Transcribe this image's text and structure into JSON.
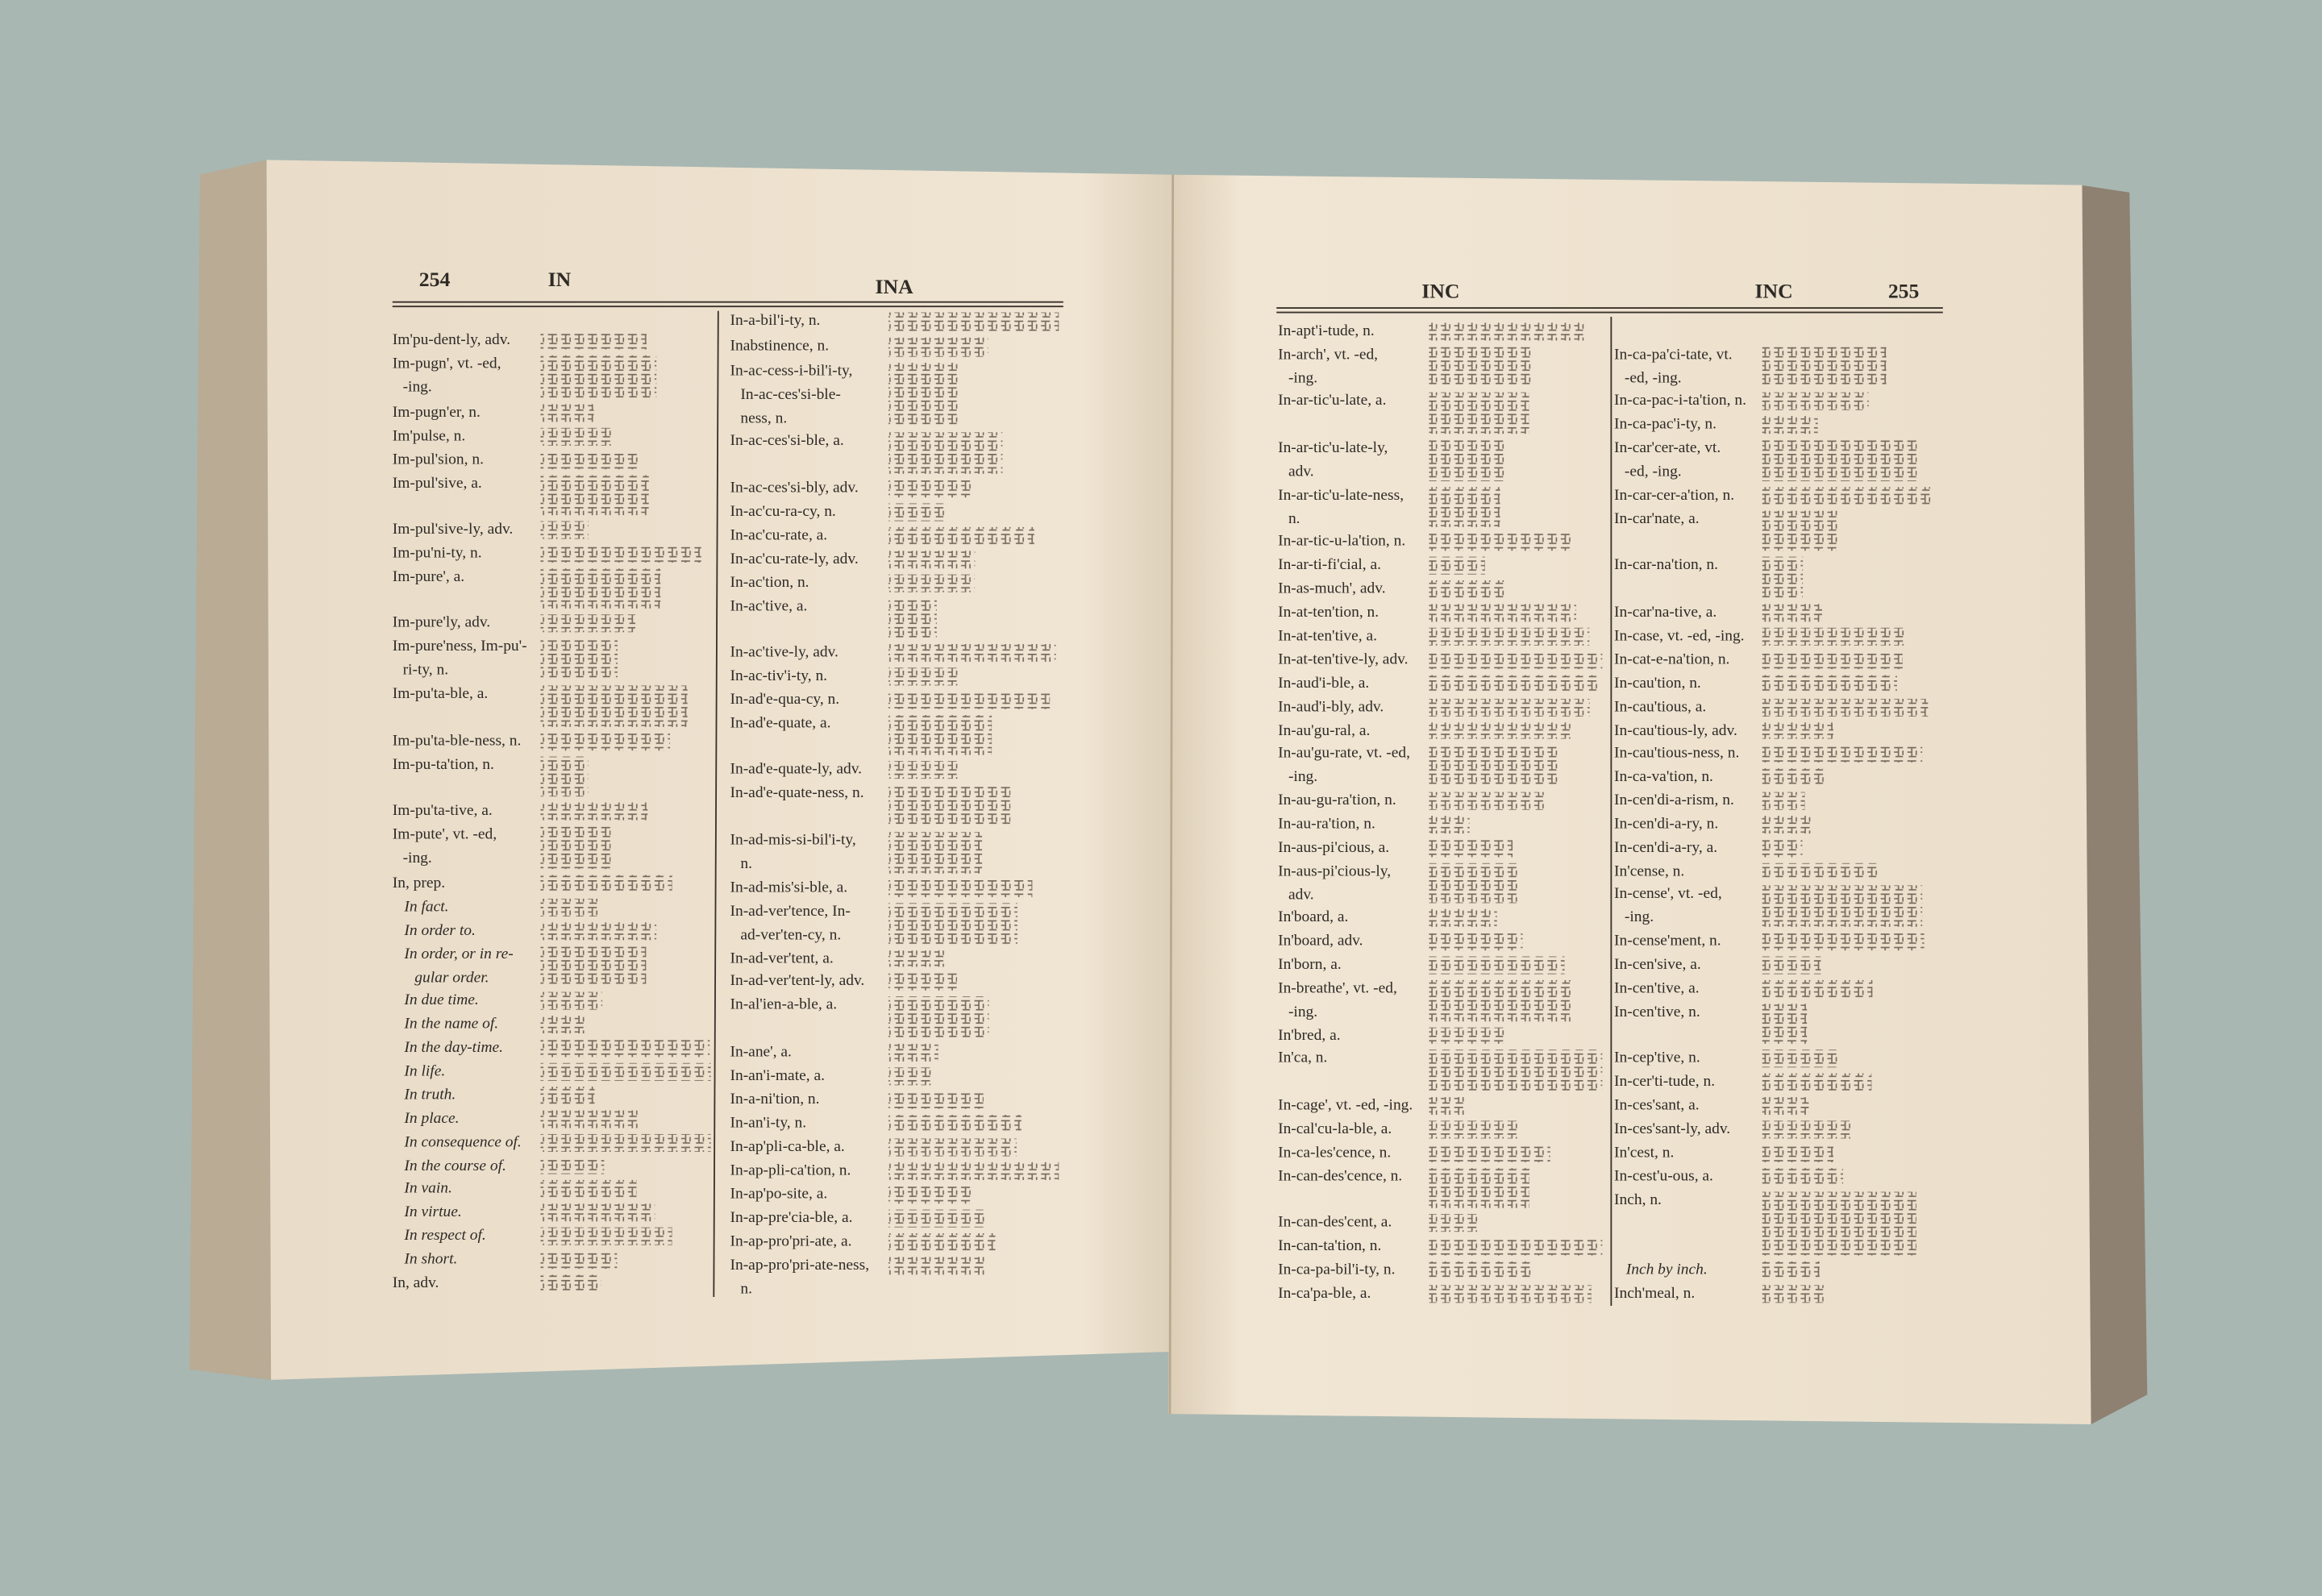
{
  "pages": [
    {
      "header": {
        "page_number": "254",
        "left_guide": "IN",
        "right_guide": "INA"
      },
      "columns": [
        [
          {
            "lines": [
              "Im'pu-dent-ly, adv."
            ]
          },
          {
            "lines": [
              "Im-pugn', vt. -ed,",
              "-ing."
            ]
          },
          {
            "lines": [
              "Im-pugn'er, n."
            ]
          },
          {
            "lines": [
              "Im'pulse, n."
            ]
          },
          {
            "lines": [
              "Im-pul'sion, n."
            ]
          },
          {
            "lines": [
              "Im-pul'sive, a."
            ]
          },
          {
            "lines": [
              "Im-pul'sive-ly, adv."
            ]
          },
          {
            "lines": [
              "Im-pu'ni-ty, n."
            ]
          },
          {
            "lines": [
              "Im-pure', a."
            ]
          },
          {
            "lines": [
              "Im-pure'ly, adv."
            ]
          },
          {
            "lines": [
              "Im-pure'ness, Im-pu'-",
              "ri-ty, n."
            ]
          },
          {
            "lines": [
              "Im-pu'ta-ble, a."
            ]
          },
          {
            "lines": [
              "Im-pu'ta-ble-ness, n."
            ]
          },
          {
            "lines": [
              "Im-pu-ta'tion, n."
            ]
          },
          {
            "lines": [
              "Im-pu'ta-tive, a."
            ]
          },
          {
            "lines": [
              "Im-pute', vt. -ed,",
              "-ing."
            ]
          },
          {
            "lines": [
              "In, prep."
            ]
          },
          {
            "lines": [
              "In fact."
            ]
          },
          {
            "lines": [
              "In order to."
            ]
          },
          {
            "lines": [
              "In order, or in re-",
              "gular order."
            ]
          },
          {
            "lines": [
              "In due time."
            ]
          },
          {
            "lines": [
              "In the name of."
            ]
          },
          {
            "lines": [
              "In the day-time."
            ]
          },
          {
            "lines": [
              "In life."
            ]
          },
          {
            "lines": [
              "In truth."
            ]
          },
          {
            "lines": [
              "In place."
            ]
          },
          {
            "lines": [
              "In consequence of."
            ]
          },
          {
            "lines": [
              "In the course of."
            ]
          },
          {
            "lines": [
              "In vain."
            ]
          },
          {
            "lines": [
              "In virtue."
            ]
          },
          {
            "lines": [
              "In respect of."
            ]
          },
          {
            "lines": [
              "In short."
            ]
          },
          {
            "lines": [
              "In, adv."
            ]
          }
        ],
        [
          {
            "lines": [
              "In-a-bil'i-ty, n."
            ]
          },
          {
            "lines": [
              "Inabstinence, n."
            ]
          },
          {
            "lines": [
              "In-ac-cess-i-bil'i-ty,",
              "In-ac-ces'si-ble-",
              "ness, n."
            ]
          },
          {
            "lines": [
              "In-ac-ces'si-ble, a."
            ]
          },
          {
            "lines": [
              "In-ac-ces'si-bly, adv."
            ]
          },
          {
            "lines": [
              "In-ac'cu-ra-cy, n."
            ]
          },
          {
            "lines": [
              "In-ac'cu-rate, a."
            ]
          },
          {
            "lines": [
              "In-ac'cu-rate-ly, adv."
            ]
          },
          {
            "lines": [
              "In-ac'tion, n."
            ]
          },
          {
            "lines": [
              "In-ac'tive, a."
            ]
          },
          {
            "lines": [
              "In-ac'tive-ly, adv."
            ]
          },
          {
            "lines": [
              "In-ac-tiv'i-ty, n."
            ]
          },
          {
            "lines": [
              "In-ad'e-qua-cy, n."
            ]
          },
          {
            "lines": [
              "In-ad'e-quate, a."
            ]
          },
          {
            "lines": [
              "In-ad'e-quate-ly, adv."
            ]
          },
          {
            "lines": [
              "In-ad'e-quate-ness, n."
            ]
          },
          {
            "lines": [
              "In-ad-mis-si-bil'i-ty,",
              "n."
            ]
          },
          {
            "lines": [
              "In-ad-mis'si-ble, a."
            ]
          },
          {
            "lines": [
              "In-ad-ver'tence, In-",
              "ad-ver'ten-cy, n."
            ]
          },
          {
            "lines": [
              "In-ad-ver'tent, a."
            ]
          },
          {
            "lines": [
              "In-ad-ver'tent-ly, adv."
            ]
          },
          {
            "lines": [
              "In-al'ien-a-ble, a."
            ]
          },
          {
            "lines": [
              "In-ane', a."
            ]
          },
          {
            "lines": [
              "In-an'i-mate, a."
            ]
          },
          {
            "lines": [
              "In-a-ni'tion, n."
            ]
          },
          {
            "lines": [
              "In-an'i-ty, n."
            ]
          },
          {
            "lines": [
              "In-ap'pli-ca-ble, a."
            ]
          },
          {
            "lines": [
              "In-ap-pli-ca'tion, n."
            ]
          },
          {
            "lines": [
              "In-ap'po-site, a."
            ]
          },
          {
            "lines": [
              "In-ap-pre'cia-ble, a."
            ]
          },
          {
            "lines": [
              "In-ap-pro'pri-ate, a."
            ]
          },
          {
            "lines": [
              "In-ap-pro'pri-ate-ness,",
              "n."
            ]
          }
        ]
      ]
    },
    {
      "header": {
        "left_guide": "INC",
        "right_guide": "INC",
        "page_number": "255"
      },
      "columns": [
        [
          {
            "lines": [
              "In-apt'i-tude, n."
            ]
          },
          {
            "lines": [
              "In-arch', vt. -ed,",
              "-ing."
            ]
          },
          {
            "lines": [
              "In-ar-tic'u-late, a."
            ]
          },
          {
            "lines": [
              "In-ar-tic'u-late-ly,",
              "adv."
            ]
          },
          {
            "lines": [
              "In-ar-tic'u-late-ness,",
              "n."
            ]
          },
          {
            "lines": [
              "In-ar-tic-u-la'tion, n."
            ]
          },
          {
            "lines": [
              "In-ar-ti-fi'cial, a."
            ]
          },
          {
            "lines": [
              "In-as-much', adv."
            ]
          },
          {
            "lines": [
              "In-at-ten'tion, n."
            ]
          },
          {
            "lines": [
              "In-at-ten'tive, a."
            ]
          },
          {
            "lines": [
              "In-at-ten'tive-ly, adv."
            ]
          },
          {
            "lines": [
              "In-aud'i-ble, a."
            ]
          },
          {
            "lines": [
              "In-aud'i-bly, adv."
            ]
          },
          {
            "lines": [
              "In-au'gu-ral, a."
            ]
          },
          {
            "lines": [
              "In-au'gu-rate, vt. -ed,",
              "-ing."
            ]
          },
          {
            "lines": [
              "In-au-gu-ra'tion, n."
            ]
          },
          {
            "lines": [
              "In-au-ra'tion, n."
            ]
          },
          {
            "lines": [
              "In-aus-pi'cious, a."
            ]
          },
          {
            "lines": [
              "In-aus-pi'cious-ly,",
              "adv."
            ]
          },
          {
            "lines": [
              "In'board, a."
            ]
          },
          {
            "lines": [
              "In'board, adv."
            ]
          },
          {
            "lines": [
              "In'born, a."
            ]
          },
          {
            "lines": [
              "In-breathe', vt. -ed,",
              "-ing."
            ]
          },
          {
            "lines": [
              "In'bred, a."
            ]
          },
          {
            "lines": [
              "In'ca, n."
            ]
          },
          {
            "lines": [
              "In-cage', vt. -ed, -ing."
            ]
          },
          {
            "lines": [
              "In-cal'cu-la-ble, a."
            ]
          },
          {
            "lines": [
              "In-ca-les'cence, n."
            ]
          },
          {
            "lines": [
              "In-can-des'cence, n."
            ]
          },
          {
            "lines": [
              "In-can-des'cent, a."
            ]
          },
          {
            "lines": [
              "In-can-ta'tion, n."
            ]
          },
          {
            "lines": [
              "In-ca-pa-bil'i-ty, n."
            ]
          },
          {
            "lines": [
              "In-ca'pa-ble, a."
            ]
          }
        ],
        [
          {
            "lines": [
              "In-ca-pa'ci-tate, vt.",
              "-ed, -ing."
            ]
          },
          {
            "lines": [
              "In-ca-pac-i-ta'tion, n."
            ]
          },
          {
            "lines": [
              "In-ca-pac'i-ty, n."
            ]
          },
          {
            "lines": [
              "In-car'cer-ate, vt.",
              "-ed, -ing."
            ]
          },
          {
            "lines": [
              "In-car-cer-a'tion, n."
            ]
          },
          {
            "lines": [
              "In-car'nate, a."
            ]
          },
          {
            "lines": [
              "In-car-na'tion, n."
            ]
          },
          {
            "lines": [
              "In-car'na-tive, a."
            ]
          },
          {
            "lines": [
              "In-case, vt. -ed, -ing."
            ]
          },
          {
            "lines": [
              "In-cat-e-na'tion, n."
            ]
          },
          {
            "lines": [
              "In-cau'tion, n."
            ]
          },
          {
            "lines": [
              "In-cau'tious, a."
            ]
          },
          {
            "lines": [
              "In-cau'tious-ly, adv."
            ]
          },
          {
            "lines": [
              "In-cau'tious-ness, n."
            ]
          },
          {
            "lines": [
              "In-ca-va'tion, n."
            ]
          },
          {
            "lines": [
              "In-cen'di-a-rism, n."
            ]
          },
          {
            "lines": [
              "In-cen'di-a-ry, n."
            ]
          },
          {
            "lines": [
              "In-cen'di-a-ry, a."
            ]
          },
          {
            "lines": [
              "In'cense, n."
            ]
          },
          {
            "lines": [
              "In-cense', vt. -ed,",
              "-ing."
            ]
          },
          {
            "lines": [
              "In-cense'ment, n."
            ]
          },
          {
            "lines": [
              "In-cen'sive, a."
            ]
          },
          {
            "lines": [
              "In-cen'tive, a."
            ]
          },
          {
            "lines": [
              "In-cen'tive, n."
            ]
          },
          {
            "lines": [
              "In-cep'tive, n."
            ]
          },
          {
            "lines": [
              "In-cer'ti-tude, n."
            ]
          },
          {
            "lines": [
              "In-ces'sant, a."
            ]
          },
          {
            "lines": [
              "In-ces'sant-ly, adv."
            ]
          },
          {
            "lines": [
              "In'cest, n."
            ]
          },
          {
            "lines": [
              "In-cest'u-ous, a."
            ]
          },
          {
            "lines": [
              "Inch, n."
            ]
          },
          {
            "lines": [
              "Inch by inch."
            ]
          },
          {
            "lines": [
              "Inch'meal, n."
            ]
          }
        ]
      ]
    }
  ]
}
